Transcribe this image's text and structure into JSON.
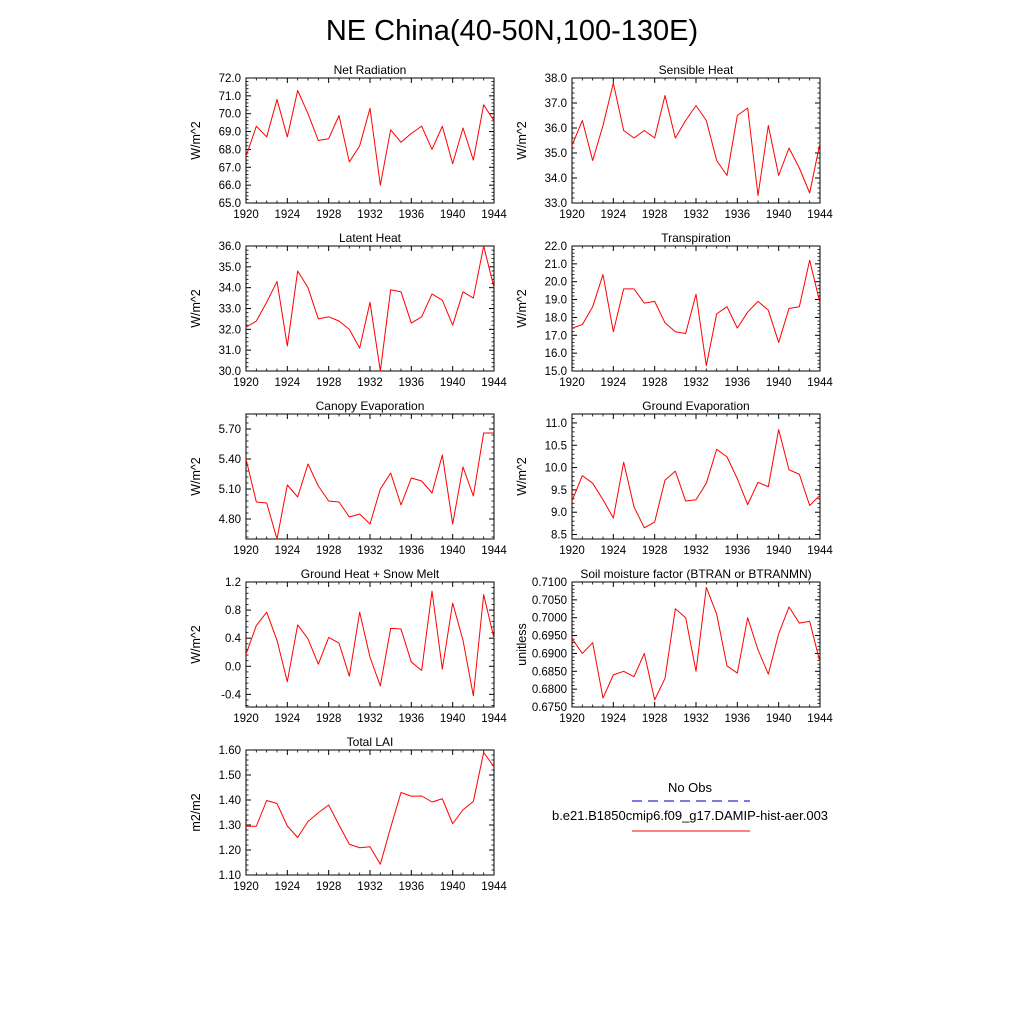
{
  "title": "NE China(40-50N,100-130E)",
  "colors": {
    "model_line": "#ff0000",
    "obs_line": "#2b2bd6",
    "axis": "#000000"
  },
  "legend": {
    "obs_label": "No Obs",
    "model_label": "b.e21.B1850cmip6.f09_g17.DAMIP-hist-aer.003"
  },
  "chart_data": [
    {
      "type": "line",
      "title": "Net Radiation",
      "ylabel": "W/m^2",
      "xlim": [
        1920,
        1944
      ],
      "ylim": [
        65.0,
        72.0
      ],
      "xticks": [
        "1920",
        "1924",
        "1928",
        "1932",
        "1936",
        "1940",
        "1944"
      ],
      "yticks": [
        "65.0",
        "66.0",
        "67.0",
        "68.0",
        "69.0",
        "70.0",
        "71.0",
        "72.0"
      ],
      "x": [
        1920,
        1921,
        1922,
        1923,
        1924,
        1925,
        1926,
        1927,
        1928,
        1929,
        1930,
        1931,
        1932,
        1933,
        1934,
        1935,
        1936,
        1937,
        1938,
        1939,
        1940,
        1941,
        1942,
        1943,
        1944
      ],
      "values": [
        67.6,
        69.3,
        68.7,
        70.8,
        68.7,
        71.3,
        70.0,
        68.5,
        68.6,
        69.9,
        67.3,
        68.2,
        70.3,
        66.0,
        69.1,
        68.4,
        68.9,
        69.3,
        68.0,
        69.3,
        67.2,
        69.2,
        67.4,
        70.5,
        69.6
      ]
    },
    {
      "type": "line",
      "title": "Sensible Heat",
      "ylabel": "W/m^2",
      "xlim": [
        1920,
        1944
      ],
      "ylim": [
        33.0,
        38.0
      ],
      "xticks": [
        "1920",
        "1924",
        "1928",
        "1932",
        "1936",
        "1940",
        "1944"
      ],
      "yticks": [
        "33.0",
        "34.0",
        "35.0",
        "36.0",
        "37.0",
        "38.0"
      ],
      "x": [
        1920,
        1921,
        1922,
        1923,
        1924,
        1925,
        1926,
        1927,
        1928,
        1929,
        1930,
        1931,
        1932,
        1933,
        1934,
        1935,
        1936,
        1937,
        1938,
        1939,
        1940,
        1941,
        1942,
        1943,
        1944
      ],
      "values": [
        35.3,
        36.3,
        34.7,
        36.1,
        37.8,
        35.9,
        35.6,
        35.9,
        35.6,
        37.3,
        35.6,
        36.3,
        36.9,
        36.3,
        34.7,
        34.1,
        36.5,
        36.8,
        33.3,
        36.1,
        34.1,
        35.2,
        34.4,
        33.4,
        35.4
      ]
    },
    {
      "type": "line",
      "title": "Latent Heat",
      "ylabel": "W/m^2",
      "xlim": [
        1920,
        1944
      ],
      "ylim": [
        30.0,
        36.0
      ],
      "xticks": [
        "1920",
        "1924",
        "1928",
        "1932",
        "1936",
        "1940",
        "1944"
      ],
      "yticks": [
        "30.0",
        "31.0",
        "32.0",
        "33.0",
        "34.0",
        "35.0",
        "36.0"
      ],
      "x": [
        1920,
        1921,
        1922,
        1923,
        1924,
        1925,
        1926,
        1927,
        1928,
        1929,
        1930,
        1931,
        1932,
        1933,
        1934,
        1935,
        1936,
        1937,
        1938,
        1939,
        1940,
        1941,
        1942,
        1943,
        1944
      ],
      "values": [
        32.1,
        32.4,
        33.3,
        34.3,
        31.2,
        34.8,
        34.0,
        32.5,
        32.6,
        32.4,
        32.0,
        31.1,
        33.3,
        30.0,
        33.9,
        33.8,
        32.3,
        32.6,
        33.7,
        33.4,
        32.2,
        33.8,
        33.5,
        36.0,
        34.0
      ]
    },
    {
      "type": "line",
      "title": "Transpiration",
      "ylabel": "W/m^2",
      "xlim": [
        1920,
        1944
      ],
      "ylim": [
        15.0,
        22.0
      ],
      "xticks": [
        "1920",
        "1924",
        "1928",
        "1932",
        "1936",
        "1940",
        "1944"
      ],
      "yticks": [
        "15.0",
        "16.0",
        "17.0",
        "18.0",
        "19.0",
        "20.0",
        "21.0",
        "22.0"
      ],
      "x": [
        1920,
        1921,
        1922,
        1923,
        1924,
        1925,
        1926,
        1927,
        1928,
        1929,
        1930,
        1931,
        1932,
        1933,
        1934,
        1935,
        1936,
        1937,
        1938,
        1939,
        1940,
        1941,
        1942,
        1943,
        1944
      ],
      "values": [
        17.4,
        17.6,
        18.6,
        20.4,
        17.2,
        19.6,
        19.6,
        18.8,
        18.9,
        17.7,
        17.2,
        17.1,
        19.3,
        15.3,
        18.2,
        18.6,
        17.4,
        18.3,
        18.9,
        18.4,
        16.6,
        18.5,
        18.6,
        21.2,
        18.8
      ]
    },
    {
      "type": "line",
      "title": "Canopy Evaporation",
      "ylabel": "W/m^2",
      "xlim": [
        1920,
        1944
      ],
      "ylim": [
        4.6,
        5.85
      ],
      "xticks": [
        "1920",
        "1924",
        "1928",
        "1932",
        "1936",
        "1940",
        "1944"
      ],
      "yticks": [
        "4.80",
        "5.10",
        "5.40",
        "5.70"
      ],
      "x": [
        1920,
        1921,
        1922,
        1923,
        1924,
        1925,
        1926,
        1927,
        1928,
        1929,
        1930,
        1931,
        1932,
        1933,
        1934,
        1935,
        1936,
        1937,
        1938,
        1939,
        1940,
        1941,
        1942,
        1943,
        1944
      ],
      "values": [
        5.4,
        4.97,
        4.96,
        4.6,
        5.14,
        5.02,
        5.35,
        5.13,
        4.98,
        4.97,
        4.82,
        4.85,
        4.75,
        5.1,
        5.26,
        4.94,
        5.21,
        5.18,
        5.06,
        5.44,
        4.75,
        5.32,
        5.03,
        5.66,
        5.66
      ]
    },
    {
      "type": "line",
      "title": "Ground Evaporation",
      "ylabel": "W/m^2",
      "xlim": [
        1920,
        1944
      ],
      "ylim": [
        8.4,
        11.2
      ],
      "xticks": [
        "1920",
        "1924",
        "1928",
        "1932",
        "1936",
        "1940",
        "1944"
      ],
      "yticks": [
        "8.5",
        "9.0",
        "9.5",
        "10.0",
        "10.5",
        "11.0"
      ],
      "x": [
        1920,
        1921,
        1922,
        1923,
        1924,
        1925,
        1926,
        1927,
        1928,
        1929,
        1930,
        1931,
        1932,
        1933,
        1934,
        1935,
        1936,
        1937,
        1938,
        1939,
        1940,
        1941,
        1942,
        1943,
        1944
      ],
      "values": [
        9.25,
        9.82,
        9.65,
        9.28,
        8.87,
        10.12,
        9.12,
        8.65,
        8.78,
        9.72,
        9.92,
        9.25,
        9.28,
        9.65,
        10.41,
        10.24,
        9.75,
        9.17,
        9.67,
        9.57,
        10.85,
        9.95,
        9.85,
        9.15,
        9.38
      ]
    },
    {
      "type": "line",
      "title": "Ground Heat + Snow Melt",
      "ylabel": "W/m^2",
      "xlim": [
        1920,
        1944
      ],
      "ylim": [
        -0.58,
        1.2
      ],
      "xticks": [
        "1920",
        "1924",
        "1928",
        "1932",
        "1936",
        "1940",
        "1944"
      ],
      "yticks": [
        "-0.4",
        "0.0",
        "0.4",
        "0.8",
        "1.2"
      ],
      "x": [
        1920,
        1921,
        1922,
        1923,
        1924,
        1925,
        1926,
        1927,
        1928,
        1929,
        1930,
        1931,
        1932,
        1933,
        1934,
        1935,
        1936,
        1937,
        1938,
        1939,
        1940,
        1941,
        1942,
        1943,
        1944
      ],
      "values": [
        0.17,
        0.58,
        0.77,
        0.37,
        -0.22,
        0.59,
        0.39,
        0.03,
        0.41,
        0.33,
        -0.14,
        0.77,
        0.13,
        -0.28,
        0.54,
        0.53,
        0.06,
        -0.06,
        1.07,
        -0.04,
        0.9,
        0.37,
        -0.42,
        1.02,
        0.4
      ]
    },
    {
      "type": "line",
      "title": "Soil moisture factor (BTRAN or BTRANMN)",
      "ylabel": "unitless",
      "xlim": [
        1920,
        1944
      ],
      "ylim": [
        0.675,
        0.71
      ],
      "xticks": [
        "1920",
        "1924",
        "1928",
        "1932",
        "1936",
        "1940",
        "1944"
      ],
      "yticks": [
        "0.6750",
        "0.6800",
        "0.6850",
        "0.6900",
        "0.6950",
        "0.7000",
        "0.7050",
        "0.7100"
      ],
      "x": [
        1920,
        1921,
        1922,
        1923,
        1924,
        1925,
        1926,
        1927,
        1928,
        1929,
        1930,
        1931,
        1932,
        1933,
        1934,
        1935,
        1936,
        1937,
        1938,
        1939,
        1940,
        1941,
        1942,
        1943,
        1944
      ],
      "values": [
        0.6942,
        0.69,
        0.693,
        0.6775,
        0.684,
        0.685,
        0.6835,
        0.69,
        0.677,
        0.683,
        0.7025,
        0.7,
        0.685,
        0.7085,
        0.701,
        0.6865,
        0.6845,
        0.7,
        0.691,
        0.6842,
        0.6955,
        0.703,
        0.6985,
        0.699,
        0.6875
      ]
    },
    {
      "type": "line",
      "title": "Total LAI",
      "ylabel": "m2/m2",
      "xlim": [
        1920,
        1944
      ],
      "ylim": [
        1.1,
        1.6
      ],
      "xticks": [
        "1920",
        "1924",
        "1928",
        "1932",
        "1936",
        "1940",
        "1944"
      ],
      "yticks": [
        "1.10",
        "1.20",
        "1.30",
        "1.40",
        "1.50",
        "1.60"
      ],
      "x": [
        1920,
        1921,
        1922,
        1923,
        1924,
        1925,
        1926,
        1927,
        1928,
        1929,
        1930,
        1931,
        1932,
        1933,
        1934,
        1935,
        1936,
        1937,
        1938,
        1939,
        1940,
        1941,
        1942,
        1943,
        1944
      ],
      "values": [
        1.295,
        1.295,
        1.398,
        1.386,
        1.296,
        1.25,
        1.314,
        1.349,
        1.38,
        1.3,
        1.223,
        1.209,
        1.213,
        1.143,
        1.29,
        1.43,
        1.415,
        1.416,
        1.392,
        1.405,
        1.305,
        1.361,
        1.394,
        1.59,
        1.533
      ]
    }
  ]
}
